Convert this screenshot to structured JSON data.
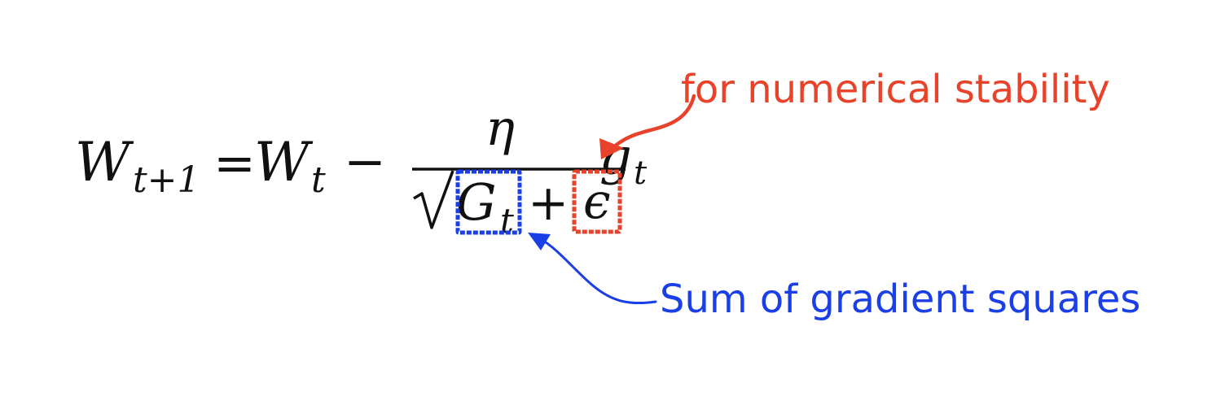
{
  "formula": {
    "lhs_base": "W",
    "lhs_sub": "t+1",
    "equals": "=",
    "w_base": "W",
    "w_sub": "t",
    "minus": "−",
    "numerator": "η",
    "sqrt": "√",
    "g_base": "G",
    "g_sub": "t",
    "plus": "+",
    "epsilon": "ϵ",
    "grad_base": "g",
    "grad_sub": "t"
  },
  "annotations": {
    "stability": {
      "text": "for numerical stability",
      "color": "#e8432a"
    },
    "gradient_squares": {
      "text": "Sum of gradient squares",
      "color": "#1a3fe6"
    }
  }
}
